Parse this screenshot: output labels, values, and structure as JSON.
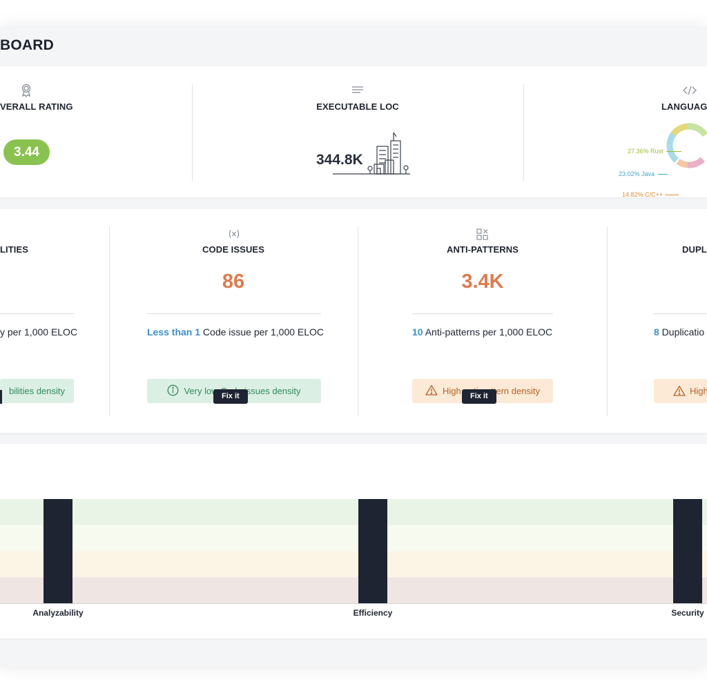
{
  "header": {
    "title": "BOARD"
  },
  "summary": {
    "overall_rating": {
      "label": "VERALL RATING",
      "value": "3.44",
      "icon": "award-ribbon-icon"
    },
    "executable_loc": {
      "label": "EXECUTABLE LOC",
      "value": "344.8K",
      "icon": "text-lines-icon",
      "illustration": "city-buildings-icon"
    },
    "languages": {
      "label": "LANGUAG",
      "icon": "code-brackets-icon",
      "items": [
        {
          "label": "27.36% Rust",
          "color": "#9dbb3a"
        },
        {
          "label": "23.02% Java",
          "color": "#3aa7cf"
        },
        {
          "label": "14.82% C/C++",
          "color": "#e58a2e"
        }
      ]
    }
  },
  "metrics": {
    "vulnerabilities": {
      "label": "LITIES",
      "density_text": "y per 1,000 ELOC",
      "status": "bilities density"
    },
    "code_issues": {
      "icon": "variable-x-icon",
      "label": "CODE ISSUES",
      "value": "86",
      "density_num": "Less than 1",
      "density_text": " Code issue per 1,000 ELOC",
      "status": "Very low Code issues density",
      "status_icon": "info-circle-icon",
      "button": "Fix it"
    },
    "anti_patterns": {
      "icon": "grid-squares-icon",
      "label": "ANTI-PATTERNS",
      "value": "3.4K",
      "density_num": "10",
      "density_text": " Anti-patterns per 1,000 ELOC",
      "status": "High anti-pattern density",
      "status_icon": "warning-triangle-icon",
      "button": "Fix it"
    },
    "duplication": {
      "label": "DUPL",
      "density_num": "8",
      "density_text": " Duplicatio",
      "status": "High",
      "status_icon": "warning-triangle-icon"
    }
  },
  "chart_data": {
    "type": "bar",
    "categories": [
      "Analyzability",
      "Efficiency",
      "Security"
    ],
    "values": [
      4,
      4,
      4
    ],
    "ylim": [
      0,
      4
    ],
    "bands": [
      {
        "from": 3,
        "to": 4,
        "color": "#eaf4e6"
      },
      {
        "from": 2,
        "to": 3,
        "color": "#f6faef"
      },
      {
        "from": 1,
        "to": 2,
        "color": "#fcf5e6"
      },
      {
        "from": 0,
        "to": 1,
        "color": "#efe6e4"
      }
    ],
    "bar_color": "#1f2432"
  }
}
